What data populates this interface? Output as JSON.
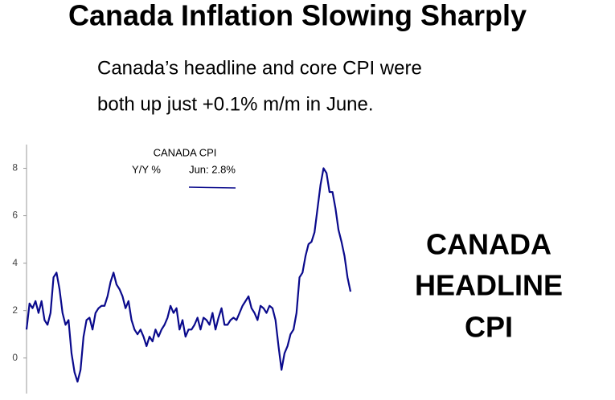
{
  "chart_data": {
    "type": "line",
    "title": "Canada Inflation Slowing Sharply",
    "subtitle": [
      "Canada’s headline and core CPI were",
      "both up just +0.1% m/m in June."
    ],
    "legend_title": "CANADA CPI",
    "annotation": "Jun: 2.8%",
    "side_label": [
      "CANADA",
      "HEADLINE",
      "CPI"
    ],
    "series": [
      {
        "name": "Y/Y %",
        "color": "#0a0a8c",
        "values": [
          1.2,
          2.3,
          2.1,
          2.4,
          1.9,
          2.4,
          1.6,
          1.4,
          1.9,
          3.4,
          3.6,
          2.9,
          1.9,
          1.4,
          1.6,
          0.2,
          -0.6,
          -1.0,
          -0.5,
          0.9,
          1.6,
          1.7,
          1.2,
          1.9,
          2.1,
          2.2,
          2.2,
          2.6,
          3.2,
          3.6,
          3.1,
          2.9,
          2.6,
          2.1,
          2.4,
          1.6,
          1.2,
          1.0,
          1.2,
          0.9,
          0.5,
          0.9,
          0.7,
          1.2,
          0.9,
          1.2,
          1.4,
          1.7,
          2.2,
          1.9,
          2.1,
          1.2,
          1.6,
          0.9,
          1.2,
          1.2,
          1.4,
          1.7,
          1.2,
          1.7,
          1.6,
          1.4,
          1.9,
          1.2,
          1.7,
          2.1,
          1.4,
          1.4,
          1.6,
          1.7,
          1.6,
          1.9,
          2.2,
          2.4,
          2.6,
          2.1,
          1.9,
          1.6,
          2.2,
          2.1,
          1.9,
          2.2,
          2.1,
          1.6,
          0.5,
          -0.5,
          0.2,
          0.5,
          1.0,
          1.2,
          1.9,
          3.4,
          3.6,
          4.3,
          4.8,
          4.9,
          5.3,
          6.3,
          7.3,
          8.0,
          7.8,
          7.0,
          7.0,
          6.3,
          5.4,
          4.9,
          4.3,
          3.4,
          2.8
        ]
      }
    ],
    "ylim": [
      -1.5,
      9
    ],
    "yticks": [
      0,
      2,
      4,
      6,
      8
    ],
    "grid": false
  }
}
